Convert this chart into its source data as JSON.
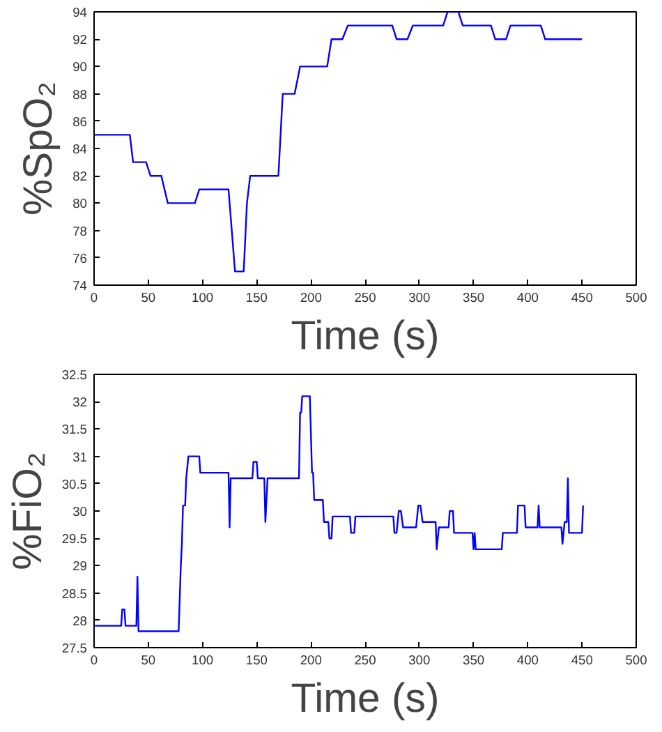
{
  "chart_data": [
    {
      "type": "line",
      "xlabel": "Time (s)",
      "ylabel": "%SpO₂",
      "xlim": [
        0,
        500
      ],
      "ylim": [
        74,
        94
      ],
      "xticks": [
        0,
        50,
        100,
        150,
        200,
        250,
        300,
        350,
        400,
        450,
        500
      ],
      "yticks": [
        74,
        76,
        78,
        80,
        82,
        84,
        86,
        88,
        90,
        92,
        94
      ],
      "grid": false,
      "x": [
        0,
        33,
        36,
        48,
        52,
        62,
        65,
        68,
        93,
        97,
        124,
        127,
        130,
        138,
        141,
        144,
        170,
        172,
        174,
        185,
        190,
        215,
        219,
        229,
        234,
        275,
        279,
        289,
        294,
        322,
        326,
        336,
        340,
        366,
        370,
        380,
        384,
        412,
        416,
        450
      ],
      "series": [
        {
          "color": "#0000ff",
          "values": [
            85,
            85,
            83,
            83,
            82,
            82,
            81,
            80,
            80,
            81,
            81,
            78,
            75,
            75,
            80,
            82,
            82,
            85,
            88,
            88,
            90,
            90,
            92,
            92,
            93,
            93,
            92,
            92,
            93,
            93,
            94,
            94,
            93,
            93,
            92,
            92,
            93,
            93,
            92,
            92
          ]
        }
      ]
    },
    {
      "type": "line",
      "xlabel": "Time (s)",
      "ylabel": "%FiO₂",
      "xlim": [
        0,
        500
      ],
      "ylim": [
        27.5,
        32.5
      ],
      "xticks": [
        0,
        50,
        100,
        150,
        200,
        250,
        300,
        350,
        400,
        450,
        500
      ],
      "yticks": [
        27.5,
        28,
        28.5,
        29,
        29.5,
        30,
        30.5,
        31,
        31.5,
        32,
        32.5
      ],
      "grid": false,
      "x": [
        0,
        25,
        26,
        28,
        29,
        39,
        40,
        41,
        78,
        80,
        81,
        82,
        84,
        85,
        87,
        97,
        98,
        124,
        125,
        126,
        146,
        147,
        150,
        151,
        157,
        158,
        160,
        189,
        190,
        191,
        192,
        199,
        201,
        202,
        203,
        211,
        212,
        216,
        217,
        219,
        220,
        236,
        237,
        240,
        241,
        276,
        277,
        279,
        281,
        283,
        285,
        297,
        299,
        301,
        303,
        315,
        316,
        318,
        327,
        328,
        331,
        332,
        349,
        350,
        351,
        352,
        376,
        377,
        390,
        391,
        397,
        398,
        409,
        410,
        411,
        431,
        432,
        434,
        436,
        437,
        438,
        450,
        451
      ],
      "series": [
        {
          "color": "#0000ff",
          "values": [
            27.9,
            27.9,
            28.2,
            28.2,
            27.9,
            27.9,
            28.8,
            27.8,
            27.8,
            29,
            29.4,
            30.1,
            30.1,
            30.6,
            31,
            31,
            30.7,
            30.7,
            29.7,
            30.6,
            30.6,
            30.9,
            30.9,
            30.6,
            30.6,
            29.8,
            30.6,
            30.6,
            31.8,
            31.8,
            32.1,
            32.1,
            30.7,
            30.7,
            30.2,
            30.2,
            29.8,
            29.8,
            29.5,
            29.5,
            29.9,
            29.9,
            29.6,
            29.6,
            29.9,
            29.9,
            29.6,
            29.6,
            30,
            30,
            29.7,
            29.7,
            30.1,
            30.1,
            29.8,
            29.8,
            29.3,
            29.7,
            29.7,
            30,
            30,
            29.6,
            29.6,
            29.3,
            29.6,
            29.3,
            29.3,
            29.6,
            29.6,
            30.1,
            30.1,
            29.7,
            29.7,
            30.1,
            29.7,
            29.7,
            29.4,
            29.8,
            29.8,
            30.6,
            29.6,
            29.6,
            30.1
          ]
        }
      ]
    }
  ]
}
